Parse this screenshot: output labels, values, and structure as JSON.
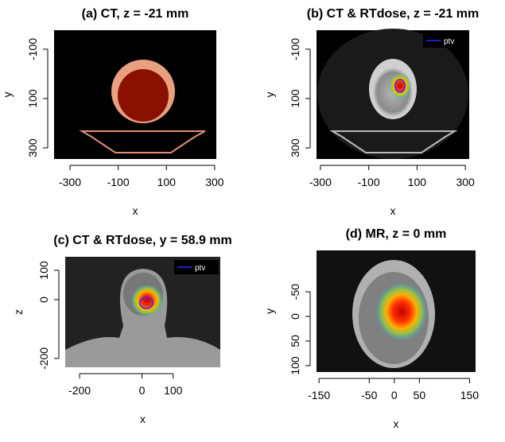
{
  "chart_data": [
    {
      "type": "image",
      "title": "(a) CT, z = -21 mm",
      "x_label": "x",
      "y_label": "y",
      "xlim": [
        -366,
        307
      ],
      "xticks": [
        -300,
        -100,
        100,
        300
      ],
      "ylim": [
        -177,
        345
      ],
      "yticks": [
        -100,
        100,
        300
      ],
      "y_inverted": true
    },
    {
      "type": "image",
      "title": "(b) CT & RTdose, z = -21 mm",
      "x_label": "x",
      "y_label": "y",
      "xlim": [
        -316,
        316
      ],
      "xticks": [
        -300,
        -100,
        100,
        300
      ],
      "ylim": [
        -177,
        345
      ],
      "yticks": [
        -100,
        100,
        300
      ],
      "y_inverted": true,
      "legend": [
        {
          "name": "ptv",
          "color": "#2a2aff"
        }
      ]
    },
    {
      "type": "image",
      "title": "(c) CT & RTdose, y = 58.9 mm",
      "x_label": "x",
      "y_label": "z",
      "xlim": [
        -246,
        251
      ],
      "xticks": [
        -200,
        0,
        100
      ],
      "ylim": [
        -230,
        146
      ],
      "yticks": [
        100,
        0,
        -200
      ],
      "y_inverted": false,
      "legend": [
        {
          "name": "ptv",
          "color": "#2a2aff"
        }
      ]
    },
    {
      "type": "image",
      "title": "(d) MR, z = 0 mm",
      "x_label": "x",
      "y_label": "y",
      "xlim": [
        -155,
        162
      ],
      "xticks": [
        -150,
        -50,
        0,
        50,
        150
      ],
      "ylim": [
        -134,
        113
      ],
      "yticks": [
        -50,
        0,
        50,
        100
      ],
      "y_inverted": true
    }
  ]
}
